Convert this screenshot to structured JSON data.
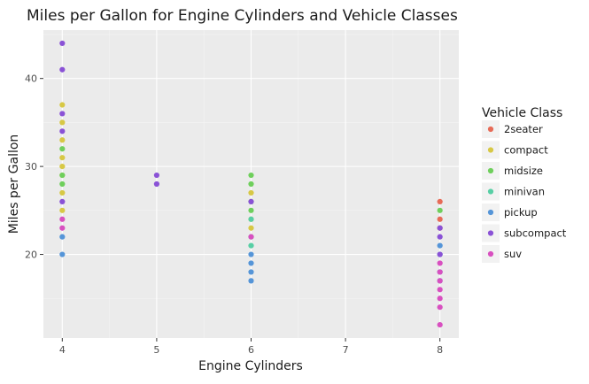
{
  "chart_data": {
    "type": "scatter",
    "title": "Miles per Gallon for Engine Cylinders and Vehicle Classes",
    "xlabel": "Engine Cylinders",
    "ylabel": "Miles per Gallon",
    "xlim": [
      3.8,
      8.2
    ],
    "ylim": [
      10.5,
      45.5
    ],
    "xticks": [
      4,
      5,
      6,
      7,
      8
    ],
    "yticks": [
      20,
      30,
      40
    ],
    "grid": true,
    "legend": {
      "title": "Vehicle Class",
      "placement": "right"
    },
    "series": [
      {
        "name": "2seater",
        "color": "#E76B57",
        "points": [
          [
            8,
            26
          ],
          [
            8,
            24
          ],
          [
            8,
            23
          ]
        ]
      },
      {
        "name": "compact",
        "color": "#D7C845",
        "points": [
          [
            4,
            37
          ],
          [
            4,
            35
          ],
          [
            4,
            33
          ],
          [
            4,
            31
          ],
          [
            4,
            30
          ],
          [
            4,
            29
          ],
          [
            4,
            27
          ],
          [
            4,
            25
          ],
          [
            6,
            27
          ],
          [
            6,
            24
          ],
          [
            6,
            23
          ]
        ]
      },
      {
        "name": "midsize",
        "color": "#6FCF5C",
        "points": [
          [
            4,
            32
          ],
          [
            4,
            29
          ],
          [
            4,
            28
          ],
          [
            6,
            29
          ],
          [
            6,
            28
          ],
          [
            6,
            26
          ],
          [
            6,
            25
          ],
          [
            8,
            25
          ]
        ]
      },
      {
        "name": "minivan",
        "color": "#58CFA5",
        "points": [
          [
            6,
            24
          ],
          [
            6,
            22
          ],
          [
            6,
            21
          ]
        ]
      },
      {
        "name": "pickup",
        "color": "#5595D8",
        "points": [
          [
            4,
            22
          ],
          [
            4,
            20
          ],
          [
            6,
            20
          ],
          [
            6,
            19
          ],
          [
            6,
            18
          ],
          [
            6,
            17
          ],
          [
            8,
            21
          ],
          [
            8,
            20
          ],
          [
            8,
            18
          ],
          [
            8,
            17
          ]
        ]
      },
      {
        "name": "subcompact",
        "color": "#8A52D6",
        "points": [
          [
            4,
            44
          ],
          [
            4,
            41
          ],
          [
            4,
            36
          ],
          [
            4,
            34
          ],
          [
            4,
            26
          ],
          [
            5,
            29
          ],
          [
            5,
            28
          ],
          [
            6,
            26
          ],
          [
            8,
            23
          ],
          [
            8,
            22
          ],
          [
            8,
            20
          ]
        ]
      },
      {
        "name": "suv",
        "color": "#D850C0",
        "points": [
          [
            4,
            24
          ],
          [
            4,
            23
          ],
          [
            6,
            22
          ],
          [
            8,
            19
          ],
          [
            8,
            18
          ],
          [
            8,
            17
          ],
          [
            8,
            16
          ],
          [
            8,
            15
          ],
          [
            8,
            14
          ],
          [
            8,
            12
          ]
        ]
      }
    ]
  }
}
